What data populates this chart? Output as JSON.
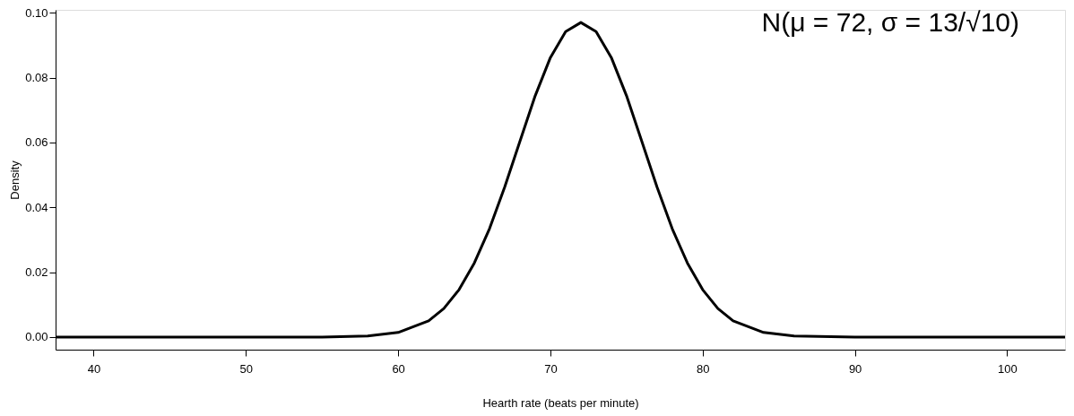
{
  "chart_data": {
    "type": "line",
    "xlabel": "Hearth rate (beats per minute)",
    "ylabel": "Density",
    "x": [
      37.5,
      45,
      50,
      55,
      58,
      60,
      62,
      63,
      64,
      65,
      66,
      67,
      68,
      69,
      70,
      71,
      72,
      73,
      74,
      75,
      76,
      77,
      78,
      79,
      80,
      81,
      82,
      84,
      86,
      90,
      95,
      103.8
    ],
    "series": [
      {
        "color": "#000000",
        "values": [
          0.0,
          0.0,
          0.0,
          0.0,
          0.0003,
          0.0014,
          0.005,
          0.0088,
          0.0146,
          0.0228,
          0.0334,
          0.0463,
          0.0604,
          0.0744,
          0.0862,
          0.0942,
          0.097,
          0.0942,
          0.0862,
          0.0744,
          0.0604,
          0.0463,
          0.0334,
          0.0228,
          0.0146,
          0.0088,
          0.005,
          0.0014,
          0.0003,
          0.0,
          0.0,
          0.0
        ]
      }
    ],
    "xlim": [
      37.5,
      103.8
    ],
    "xticks": [
      40,
      50,
      60,
      70,
      80,
      90,
      100
    ],
    "ylim": [
      -0.0039,
      0.1009
    ],
    "yticks": [
      {
        "value": 0.0,
        "label": "0.00"
      },
      0.02,
      0.04,
      0.06,
      0.08,
      {
        "value": 0.1,
        "label": "0.10"
      }
    ],
    "grid": false,
    "legend": false,
    "marker": "none",
    "line_style": "solid",
    "annotations": [
      "N(μ = 72, σ = 13/√10)"
    ]
  }
}
